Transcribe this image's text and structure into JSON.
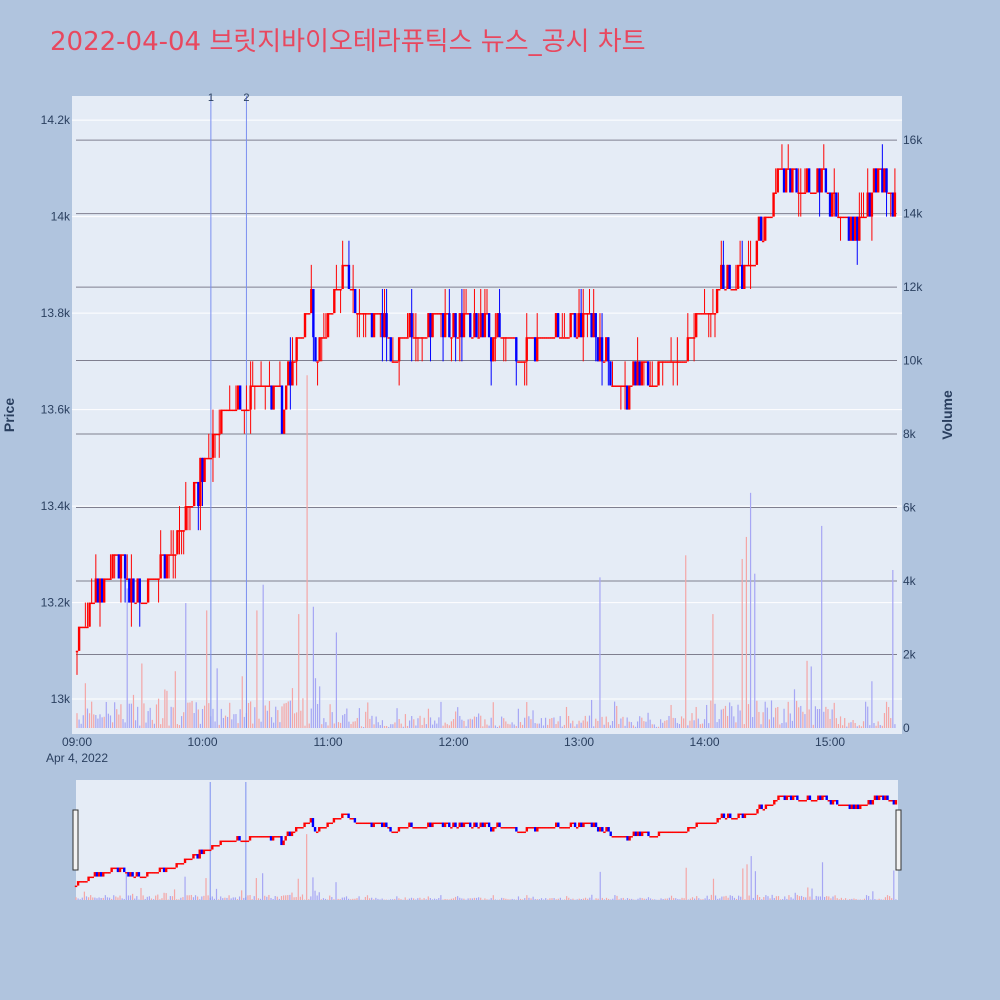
{
  "chart_data": {
    "type": "candlestick",
    "title": "2022-04-04 브릿지바이오테라퓨틱스 뉴스_공시 차트",
    "ylabel": "Price",
    "y2label": "Volume",
    "x_ticks": [
      "09:00",
      "10:00",
      "11:00",
      "12:00",
      "13:00",
      "14:00",
      "15:00"
    ],
    "x_date_label": "Apr 4, 2022",
    "y_ticks": [
      "13k",
      "13.2k",
      "13.4k",
      "13.6k",
      "13.8k",
      "14k",
      "14.2k"
    ],
    "y_tick_values": [
      13000,
      13200,
      13400,
      13600,
      13800,
      14000,
      14200
    ],
    "y2_ticks": [
      "0",
      "2k",
      "4k",
      "6k",
      "8k",
      "10k",
      "12k",
      "14k",
      "16k"
    ],
    "y2_tick_values": [
      0,
      2000,
      4000,
      6000,
      8000,
      10000,
      12000,
      14000,
      16000
    ],
    "price_range": [
      12940,
      14250
    ],
    "volume_range": [
      0,
      17200
    ],
    "time_range_minutes": [
      0,
      392
    ],
    "event_markers": [
      {
        "label": "1",
        "minute": 64
      },
      {
        "label": "2",
        "minute": 81
      }
    ],
    "price_path": [
      [
        0,
        13100
      ],
      [
        1,
        13120
      ],
      [
        4,
        13150
      ],
      [
        8,
        13220
      ],
      [
        14,
        13250
      ],
      [
        18,
        13300
      ],
      [
        22,
        13260
      ],
      [
        28,
        13200
      ],
      [
        36,
        13250
      ],
      [
        44,
        13290
      ],
      [
        48,
        13330
      ],
      [
        52,
        13380
      ],
      [
        56,
        13420
      ],
      [
        60,
        13470
      ],
      [
        66,
        13540
      ],
      [
        70,
        13590
      ],
      [
        75,
        13610
      ],
      [
        78,
        13600
      ],
      [
        82,
        13600
      ],
      [
        86,
        13650
      ],
      [
        90,
        13640
      ],
      [
        96,
        13660
      ],
      [
        98,
        13590
      ],
      [
        100,
        13640
      ],
      [
        104,
        13700
      ],
      [
        106,
        13750
      ],
      [
        112,
        13800
      ],
      [
        114,
        13700
      ],
      [
        118,
        13760
      ],
      [
        122,
        13820
      ],
      [
        126,
        13880
      ],
      [
        130,
        13870
      ],
      [
        134,
        13790
      ],
      [
        140,
        13800
      ],
      [
        148,
        13750
      ],
      [
        152,
        13720
      ],
      [
        158,
        13760
      ],
      [
        166,
        13760
      ],
      [
        172,
        13780
      ],
      [
        182,
        13760
      ],
      [
        190,
        13790
      ],
      [
        198,
        13750
      ],
      [
        206,
        13760
      ],
      [
        214,
        13720
      ],
      [
        222,
        13740
      ],
      [
        230,
        13760
      ],
      [
        240,
        13790
      ],
      [
        248,
        13760
      ],
      [
        254,
        13700
      ],
      [
        258,
        13650
      ],
      [
        262,
        13640
      ],
      [
        268,
        13680
      ],
      [
        276,
        13670
      ],
      [
        284,
        13700
      ],
      [
        290,
        13730
      ],
      [
        296,
        13770
      ],
      [
        302,
        13800
      ],
      [
        306,
        13850
      ],
      [
        312,
        13860
      ],
      [
        318,
        13880
      ],
      [
        322,
        13920
      ],
      [
        326,
        13960
      ],
      [
        330,
        14010
      ],
      [
        334,
        14050
      ],
      [
        336,
        14080
      ],
      [
        342,
        14090
      ],
      [
        350,
        14060
      ],
      [
        356,
        14080
      ],
      [
        362,
        14020
      ],
      [
        370,
        13980
      ],
      [
        376,
        14000
      ],
      [
        382,
        14060
      ],
      [
        386,
        14080
      ],
      [
        390,
        14050
      ]
    ],
    "volume_spikes": [
      {
        "minute": 106,
        "value": 3100,
        "up": true
      },
      {
        "minute": 110,
        "value": 9600,
        "up": true
      },
      {
        "minute": 113,
        "value": 3300,
        "up": false
      },
      {
        "minute": 124,
        "value": 2600,
        "up": false
      },
      {
        "minute": 62,
        "value": 3200,
        "up": true
      },
      {
        "minute": 52,
        "value": 3400,
        "up": false
      },
      {
        "minute": 24,
        "value": 3800,
        "up": false
      },
      {
        "minute": 86,
        "value": 3200,
        "up": true
      },
      {
        "minute": 89,
        "value": 3900,
        "up": false
      },
      {
        "minute": 250,
        "value": 4100,
        "up": false
      },
      {
        "minute": 291,
        "value": 4700,
        "up": true
      },
      {
        "minute": 304,
        "value": 3100,
        "up": true
      },
      {
        "minute": 318,
        "value": 4600,
        "up": true
      },
      {
        "minute": 320,
        "value": 5200,
        "up": true
      },
      {
        "minute": 322,
        "value": 6400,
        "up": false
      },
      {
        "minute": 324,
        "value": 4200,
        "up": false
      },
      {
        "minute": 356,
        "value": 5500,
        "up": false
      },
      {
        "minute": 390,
        "value": 4300,
        "up": false
      }
    ],
    "colors": {
      "up": "#ff0000",
      "down": "#0000ff",
      "up_volume": "#f4a6a6",
      "down_volume": "#a6a6f4",
      "plot_bg": "#e5ecf6",
      "outer_bg": "#b0c4de",
      "grid": "#ffffff",
      "volume_grid": "#7f7f8f",
      "title": "#e8485f",
      "text": "#2a3f5f"
    }
  }
}
